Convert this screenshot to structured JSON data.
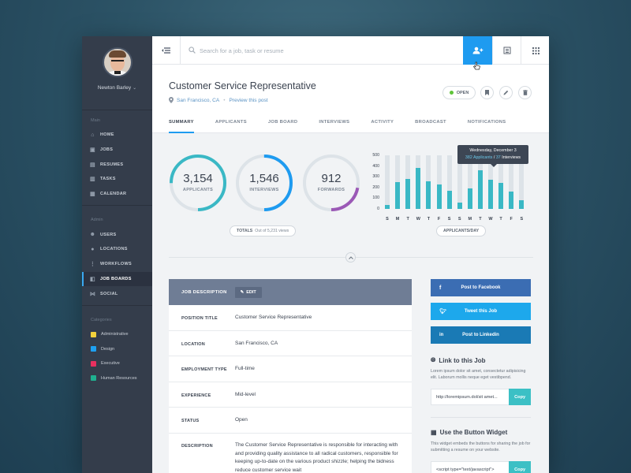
{
  "user": {
    "name": "Newton Barley"
  },
  "sidebar": {
    "main_label": "Main",
    "main_items": [
      {
        "label": "HOME",
        "icon": "home-icon"
      },
      {
        "label": "JOBS",
        "icon": "briefcase-icon"
      },
      {
        "label": "RESUMES",
        "icon": "document-icon"
      },
      {
        "label": "TASKS",
        "icon": "clipboard-icon"
      },
      {
        "label": "CALENDAR",
        "icon": "calendar-icon"
      }
    ],
    "admin_label": "Admin",
    "admin_items": [
      {
        "label": "USERS",
        "icon": "users-icon"
      },
      {
        "label": "LOCATIONS",
        "icon": "location-pin-icon"
      },
      {
        "label": "WORKFLOWS",
        "icon": "workflow-icon"
      },
      {
        "label": "JOB BOARDS",
        "icon": "bullhorn-icon",
        "active": true
      },
      {
        "label": "SOCIAL",
        "icon": "share-icon"
      }
    ],
    "categories_label": "Categories",
    "categories": [
      {
        "label": "Administrative",
        "color": "#f3d23c"
      },
      {
        "label": "Design",
        "color": "#1ea0f0"
      },
      {
        "label": "Executive",
        "color": "#e8305f"
      },
      {
        "label": "Human Resources",
        "color": "#1fb08f"
      }
    ]
  },
  "search": {
    "placeholder": "Search for a job, task or resume"
  },
  "job": {
    "title": "Customer Service Representative",
    "location": "San Francisco, CA",
    "preview_link": "Preview this post",
    "status": "OPEN"
  },
  "tabs": [
    "SUMMARY",
    "APPLICANTS",
    "JOB BOARD",
    "INTERVIEWS",
    "ACTIVITY",
    "BROADCAST",
    "NOTIFICATIONS"
  ],
  "stats": [
    {
      "value": "3,154",
      "label": "APPLICANTS",
      "color": "#3ab8c5",
      "fraction": 0.75
    },
    {
      "value": "1,546",
      "label": "INTERVIEWS",
      "color": "#1e9bf0",
      "fraction": 0.5
    },
    {
      "value": "912",
      "label": "FORWARDS",
      "color": "#9b59b6",
      "fraction": 0.22
    }
  ],
  "totals": {
    "label": "TOTALS",
    "sub": "Out of 5,231 views"
  },
  "applicants_day": {
    "label": "APPLICANTS/DAY"
  },
  "chart_data": {
    "type": "bar",
    "categories": [
      "S",
      "M",
      "T",
      "W",
      "T",
      "F",
      "S",
      "S",
      "M",
      "T",
      "W",
      "T",
      "F",
      "S"
    ],
    "values": [
      40,
      250,
      280,
      382,
      260,
      230,
      170,
      60,
      190,
      360,
      270,
      240,
      160,
      80
    ],
    "ylim": [
      0,
      500
    ],
    "yticks": [
      0,
      100,
      200,
      300,
      400,
      500
    ],
    "highlight_index": 3,
    "tooltip": {
      "title": "Wednesday, December 3",
      "applicants": "382",
      "applicants_label": "Applicants",
      "interviews": "37",
      "interviews_label": "Interviews"
    },
    "bar_color": "#3ab8c5",
    "track_color": "#dde3e8"
  },
  "job_description": {
    "heading": "JOB DESCRIPTION",
    "edit_label": "EDIT",
    "rows": [
      {
        "key": "POSITION TITLE",
        "value": "Customer Service Representative"
      },
      {
        "key": "LOCATION",
        "value": "San Francisco, CA"
      },
      {
        "key": "EMPLOYMENT TYPE",
        "value": "Full-time"
      },
      {
        "key": "EXPERIENCE",
        "value": "Mid-level"
      },
      {
        "key": "STATUS",
        "value": "Open"
      },
      {
        "key": "DESCRIPTION",
        "value": "The Customer Service Representative is responsible for interacting with and providing quality assistance to all radical customers, responsible for keeping up-to-date on the various product shizzle; helping the bidness reduce customer service wait"
      }
    ]
  },
  "share": {
    "facebook": "Post to Facebook",
    "twitter": "Tweet this Job",
    "linkedin": "Post to Linkedin"
  },
  "link_section": {
    "title": "Link to this Job",
    "text": "Lorem ipsum dolor sit amet, consectetur adipisicing elit. Laborum mollis neque eget vestibpend.",
    "url": "http://loremipsum.dol/sit amet...",
    "copy": "Copy"
  },
  "widget_section": {
    "title": "Use the Button Widget",
    "text": "This widget embeds the buttons for sharing the job for submitting a resume on your website.",
    "code": "<script type=\"text/javascript\">",
    "copy": "Copy"
  }
}
